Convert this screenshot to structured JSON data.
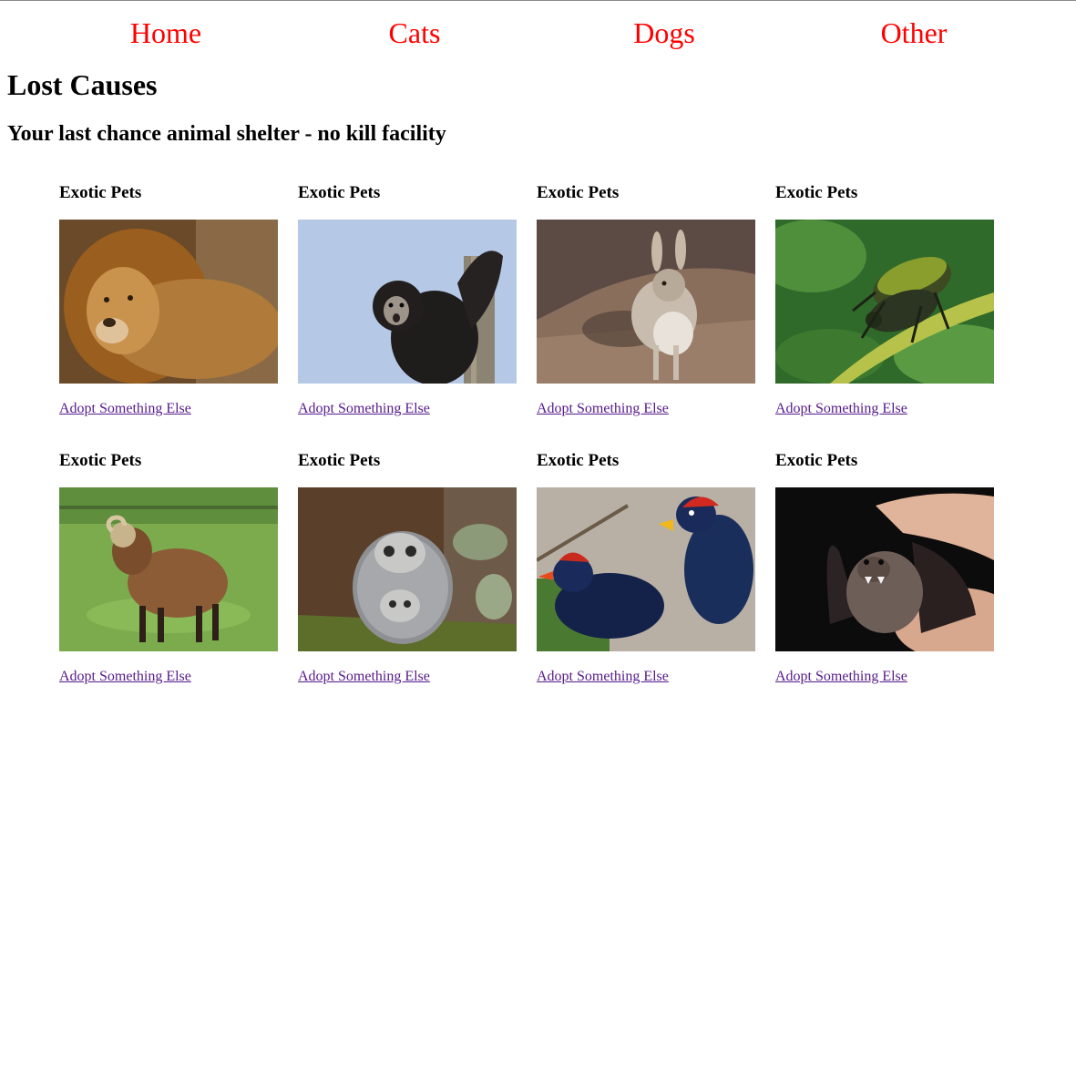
{
  "nav": {
    "items": [
      {
        "label": "Home"
      },
      {
        "label": "Cats"
      },
      {
        "label": "Dogs"
      },
      {
        "label": "Other"
      }
    ]
  },
  "header": {
    "title": "Lost Causes",
    "tagline": "Your last chance animal shelter - no kill facility"
  },
  "colors": {
    "nav_link": "#ff0000",
    "visited_link": "#551a8b"
  },
  "pets": [
    {
      "category": "Exotic Pets",
      "image_icon": "lion-photo",
      "link_label": "Adopt Something Else"
    },
    {
      "category": "Exotic Pets",
      "image_icon": "gibbon-photo",
      "link_label": "Adopt Something Else"
    },
    {
      "category": "Exotic Pets",
      "image_icon": "hare-photo",
      "link_label": "Adopt Something Else"
    },
    {
      "category": "Exotic Pets",
      "image_icon": "beetles-photo",
      "link_label": "Adopt Something Else"
    },
    {
      "category": "Exotic Pets",
      "image_icon": "sheep-photo",
      "link_label": "Adopt Something Else"
    },
    {
      "category": "Exotic Pets",
      "image_icon": "meerkat-painted-rock-photo",
      "link_label": "Adopt Something Else"
    },
    {
      "category": "Exotic Pets",
      "image_icon": "turaco-birds-photo",
      "link_label": "Adopt Something Else"
    },
    {
      "category": "Exotic Pets",
      "image_icon": "bat-in-hand-photo",
      "link_label": "Adopt Something Else"
    }
  ]
}
